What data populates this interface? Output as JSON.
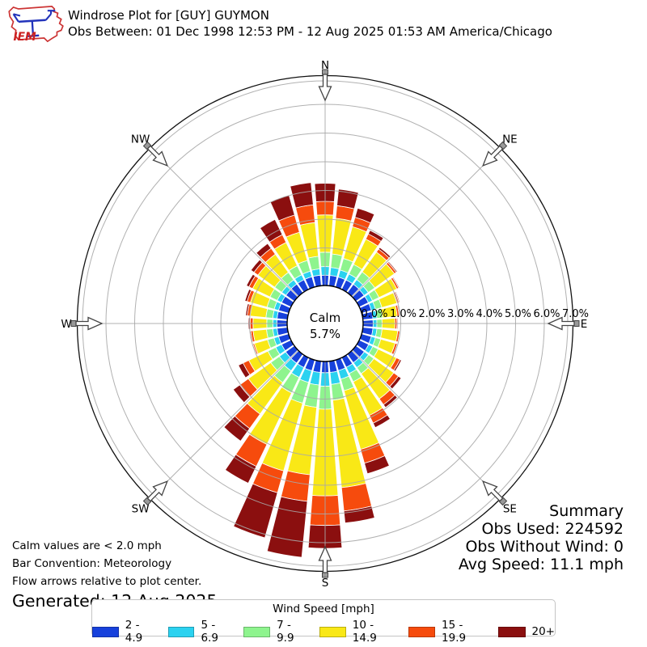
{
  "header": {
    "title": "Windrose Plot for [GUY] GUYMON",
    "subtitle": "Obs Between: 01 Dec 1998 12:53 PM - 12 Aug 2025 01:53 AM America/Chicago",
    "logo_text": "IEM"
  },
  "summary": {
    "title": "Summary",
    "obs_used": "Obs Used: 224592",
    "obs_without_wind": "Obs Without Wind: 0",
    "avg_speed": "Avg Speed: 11.1 mph"
  },
  "notes": {
    "calm_note": "Calm values are < 2.0 mph",
    "bar_convention": "Bar Convention: Meteorology",
    "flow_arrows": "Flow arrows relative to plot center.",
    "generated": "Generated: 12 Aug 2025"
  },
  "legend": {
    "title": "Wind Speed [mph]"
  },
  "chart_data": {
    "type": "windrose",
    "title": "Windrose Plot for [GUY] GUYMON",
    "units": "mph",
    "calm": {
      "label": "Calm",
      "pct_label": "5.7%"
    },
    "radial_axis": {
      "tick_labels": [
        "0.0%",
        "1.0%",
        "2.0%",
        "3.0%",
        "4.0%",
        "5.0%",
        "6.0%",
        "7.0%"
      ],
      "ticks_pct": [
        0,
        1,
        2,
        3,
        4,
        5,
        6,
        7
      ],
      "rmax_pct": 7.0,
      "grid": true
    },
    "compass": [
      {
        "label": "N",
        "angle": 0
      },
      {
        "label": "NE",
        "angle": 45
      },
      {
        "label": "E",
        "angle": 90
      },
      {
        "label": "SE",
        "angle": 135
      },
      {
        "label": "S",
        "angle": 180
      },
      {
        "label": "SW",
        "angle": 225
      },
      {
        "label": "W",
        "angle": 270
      },
      {
        "label": "NW",
        "angle": 315
      }
    ],
    "speed_bins": [
      {
        "label": "2 - 4.9",
        "color": "#1741dc"
      },
      {
        "label": "5 - 6.9",
        "color": "#2bd2f0"
      },
      {
        "label": "7 - 9.9",
        "color": "#8ef48e"
      },
      {
        "label": "10 - 14.9",
        "color": "#f9e816"
      },
      {
        "label": "15 - 19.9",
        "color": "#f64b0d"
      },
      {
        "label": "20+",
        "color": "#8b0f0f"
      }
    ],
    "directions_deg": [
      0,
      10,
      20,
      30,
      40,
      50,
      60,
      70,
      80,
      90,
      100,
      110,
      120,
      130,
      140,
      150,
      160,
      170,
      180,
      190,
      200,
      210,
      220,
      230,
      240,
      250,
      260,
      270,
      280,
      290,
      300,
      310,
      320,
      330,
      340,
      350
    ],
    "frequencies_pct": [
      [
        0.05,
        0.3,
        0.5,
        1.3,
        0.47,
        0.63
      ],
      [
        0.05,
        0.28,
        0.47,
        1.25,
        0.44,
        0.58
      ],
      [
        0.05,
        0.25,
        0.42,
        1.15,
        0.34,
        0.33
      ],
      [
        0.05,
        0.23,
        0.37,
        0.98,
        0.2,
        0.14
      ],
      [
        0.05,
        0.2,
        0.33,
        0.85,
        0.13,
        0.07
      ],
      [
        0.04,
        0.18,
        0.28,
        0.84,
        0.08,
        0.04
      ],
      [
        0.04,
        0.16,
        0.25,
        0.69,
        0.07,
        0.03
      ],
      [
        0.04,
        0.15,
        0.23,
        0.55,
        0.07,
        0.03
      ],
      [
        0.04,
        0.14,
        0.2,
        0.51,
        0.07,
        0.03
      ],
      [
        0.04,
        0.13,
        0.18,
        0.45,
        0.07,
        0.03
      ],
      [
        0.04,
        0.14,
        0.18,
        0.55,
        0.07,
        0.03
      ],
      [
        0.04,
        0.15,
        0.19,
        0.52,
        0.08,
        0.03
      ],
      [
        0.05,
        0.16,
        0.21,
        0.7,
        0.14,
        0.06
      ],
      [
        0.05,
        0.18,
        0.23,
        0.85,
        0.2,
        0.12
      ],
      [
        0.05,
        0.21,
        0.26,
        1.08,
        0.25,
        0.12
      ],
      [
        0.06,
        0.24,
        0.32,
        1.3,
        0.3,
        0.17
      ],
      [
        0.07,
        0.31,
        0.42,
        2.12,
        0.5,
        0.38
      ],
      [
        0.08,
        0.42,
        0.55,
        3.06,
        0.82,
        0.42
      ],
      [
        0.08,
        0.47,
        0.8,
        3.02,
        1.03,
        0.8
      ],
      [
        0.08,
        0.44,
        0.78,
        2.36,
        0.93,
        1.96
      ],
      [
        0.08,
        0.42,
        0.75,
        2.45,
        0.79,
        1.63
      ],
      [
        0.07,
        0.38,
        0.6,
        1.99,
        0.85,
        0.65
      ],
      [
        0.07,
        0.33,
        0.5,
        1.35,
        0.62,
        0.54
      ],
      [
        0.06,
        0.27,
        0.37,
        0.96,
        0.37,
        0.28
      ],
      [
        0.05,
        0.23,
        0.3,
        0.74,
        0.22,
        0.18
      ],
      [
        0.05,
        0.17,
        0.23,
        0.48,
        0.05,
        0.03
      ],
      [
        0.05,
        0.15,
        0.22,
        0.47,
        0.08,
        0.04
      ],
      [
        0.05,
        0.14,
        0.21,
        0.48,
        0.1,
        0.06
      ],
      [
        0.05,
        0.15,
        0.24,
        0.55,
        0.1,
        0.06
      ],
      [
        0.05,
        0.16,
        0.26,
        0.6,
        0.12,
        0.08
      ],
      [
        0.05,
        0.17,
        0.28,
        0.67,
        0.14,
        0.1
      ],
      [
        0.05,
        0.18,
        0.3,
        0.72,
        0.17,
        0.13
      ],
      [
        0.06,
        0.18,
        0.32,
        0.78,
        0.25,
        0.21
      ],
      [
        0.06,
        0.19,
        0.35,
        0.9,
        0.3,
        0.59
      ],
      [
        0.06,
        0.2,
        0.39,
        1.02,
        0.62,
        0.72
      ],
      [
        0.06,
        0.22,
        0.44,
        1.18,
        0.62,
        0.78
      ]
    ],
    "layout_hints": {
      "bar_convention": "meteorology",
      "grid_color": "#a8a8a8",
      "outer_circle_color": "#111111"
    }
  }
}
